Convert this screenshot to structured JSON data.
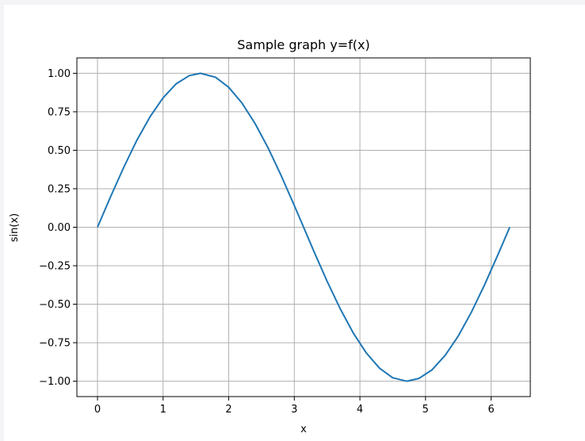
{
  "chart_data": {
    "type": "line",
    "title": "Sample graph y=f(x)",
    "xlabel": "x",
    "ylabel": "sin(x)",
    "xlim": [
      -0.314,
      6.597
    ],
    "ylim": [
      -1.1,
      1.1
    ],
    "x_ticks": [
      0,
      1,
      2,
      3,
      4,
      5,
      6
    ],
    "x_tick_labels": [
      "0",
      "1",
      "2",
      "3",
      "4",
      "5",
      "6"
    ],
    "y_ticks": [
      1.0,
      0.75,
      0.5,
      0.25,
      0.0,
      -0.25,
      -0.5,
      -0.75,
      -1.0
    ],
    "y_tick_labels": [
      "1.00",
      "0.75",
      "0.50",
      "0.25",
      "0.00",
      "−0.25",
      "−0.50",
      "−0.75",
      "−1.00"
    ],
    "grid": true,
    "series": [
      {
        "color": "#1f77b4",
        "x": [
          0.0,
          0.2,
          0.4,
          0.6,
          0.8,
          1.0,
          1.2,
          1.4,
          1.5708,
          1.8,
          2.0,
          2.2,
          2.4,
          2.6,
          2.8,
          3.0,
          3.1416,
          3.3,
          3.5,
          3.7,
          3.9,
          4.1,
          4.3,
          4.5,
          4.7124,
          4.9,
          5.1,
          5.3,
          5.5,
          5.7,
          5.9,
          6.1,
          6.2832
        ],
        "y": [
          0.0,
          0.199,
          0.389,
          0.565,
          0.717,
          0.841,
          0.932,
          0.985,
          1.0,
          0.974,
          0.909,
          0.808,
          0.675,
          0.516,
          0.335,
          0.141,
          0.0,
          -0.158,
          -0.351,
          -0.53,
          -0.688,
          -0.818,
          -0.916,
          -0.978,
          -1.0,
          -0.982,
          -0.926,
          -0.832,
          -0.706,
          -0.551,
          -0.374,
          -0.182,
          0.0
        ]
      }
    ]
  }
}
